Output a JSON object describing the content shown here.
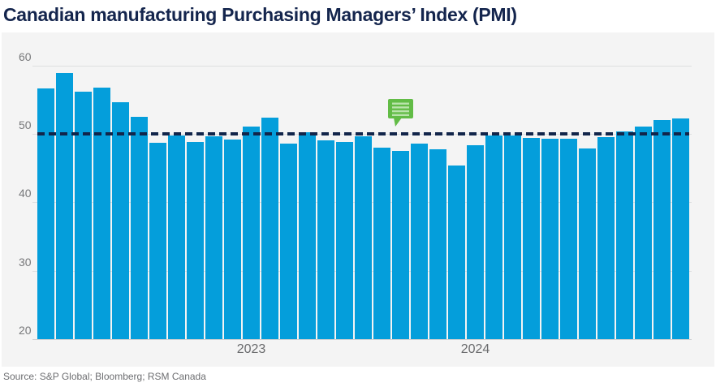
{
  "header": {
    "title": "Canadian manufacturing Purchasing Managers’ Index (PMI)"
  },
  "source": {
    "text": "Source: S&P Global; Bloomberg; RSM Canada"
  },
  "colors": {
    "title_navy": "#14254d",
    "bar_blue": "#049edb",
    "reference_navy": "#12254a",
    "annotation_green": "#62bc46",
    "annotation_lines_green": "#b9e3ab",
    "panel_gray": "#f4f4f4",
    "axis_label_gray": "#77787a",
    "source_gray": "#6d6e71"
  },
  "chart_data": {
    "type": "bar",
    "title": "Canadian manufacturing Purchasing Managers’ Index (PMI)",
    "x": [
      "Feb 2022",
      "Mar 2022",
      "Apr 2022",
      "May 2022",
      "Jun 2022",
      "Jul 2022",
      "Aug 2022",
      "Sep 2022",
      "Oct 2022",
      "Nov 2022",
      "Dec 2022",
      "Jan 2023",
      "Feb 2023",
      "Mar 2023",
      "Apr 2023",
      "May 2023",
      "Jun 2023",
      "Jul 2023",
      "Aug 2023",
      "Sep 2023",
      "Oct 2023",
      "Nov 2023",
      "Dec 2023",
      "Jan 2024",
      "Feb 2024",
      "Mar 2024",
      "Apr 2024",
      "May 2024",
      "Jun 2024",
      "Jul 2024",
      "Aug 2024",
      "Sep 2024",
      "Oct 2024",
      "Nov 2024",
      "Dec 2024"
    ],
    "values": [
      56.6,
      58.9,
      56.2,
      56.8,
      54.6,
      52.5,
      48.7,
      49.8,
      48.8,
      49.6,
      49.2,
      51.0,
      52.4,
      48.6,
      50.2,
      49.0,
      48.8,
      49.6,
      48.0,
      47.5,
      48.6,
      47.7,
      45.4,
      48.3,
      49.7,
      49.8,
      49.4,
      49.3,
      49.3,
      47.8,
      49.5,
      50.4,
      51.1,
      52.0,
      52.2
    ],
    "ylim": [
      20,
      60
    ],
    "y_ticks": [
      20,
      30,
      40,
      50,
      60
    ],
    "x_ticks": [
      {
        "label": "2023",
        "month_index": 11
      },
      {
        "label": "2024",
        "month_index": 23
      }
    ],
    "reference_line": {
      "value": 50,
      "style": "dashed",
      "color": "#12254a"
    },
    "bar_color": "#049edb",
    "grid": "horizontal",
    "legend": "none",
    "annotation": {
      "icon": "comment-bubble-icon",
      "month": "Sep 2023"
    }
  }
}
